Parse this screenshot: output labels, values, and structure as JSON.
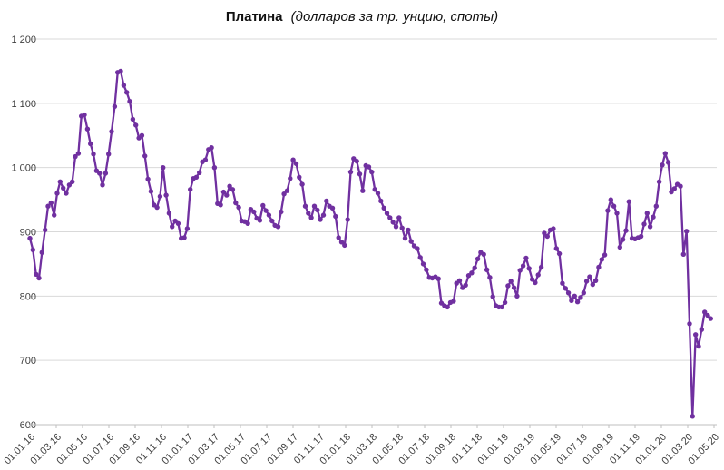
{
  "chart_data": {
    "type": "line",
    "title": "Платина",
    "subtitle": "(долларов за тр. унцию, споты)",
    "legend": "none",
    "grid": "horizontal",
    "ylim": [
      600,
      1200
    ],
    "y_tick_step": 100,
    "y_tick_labels": [
      "600",
      "700",
      "800",
      "900",
      "1 000",
      "1 100",
      "1 200"
    ],
    "x_tick_labels": [
      "01.01.16",
      "01.03.16",
      "01.05.16",
      "01.07.16",
      "01.09.16",
      "01.11.16",
      "01.01.17",
      "01.03.17",
      "01.05.17",
      "01.07.17",
      "01.09.17",
      "01.11.17",
      "01.01.18",
      "01.03.18",
      "01.05.18",
      "01.07.18",
      "01.09.18",
      "01.11.18",
      "01.01.19",
      "01.03.19",
      "01.05.19",
      "01.07.19",
      "01.09.19",
      "01.11.19",
      "01.01.20",
      "01.03.20",
      "01.05.20"
    ],
    "series": [
      {
        "name": "Платина",
        "cadence": "weekly",
        "first_point": "01.01.16",
        "values": [
          890,
          872,
          834,
          828,
          868,
          903,
          940,
          945,
          926,
          960,
          978,
          968,
          960,
          973,
          978,
          1017,
          1022,
          1080,
          1082,
          1060,
          1037,
          1021,
          995,
          991,
          973,
          991,
          1021,
          1056,
          1095,
          1148,
          1150,
          1128,
          1117,
          1103,
          1075,
          1066,
          1046,
          1050,
          1018,
          982,
          963,
          942,
          938,
          955,
          1000,
          957,
          929,
          908,
          917,
          913,
          890,
          891,
          905,
          966,
          983,
          985,
          992,
          1009,
          1012,
          1028,
          1031,
          1000,
          944,
          942,
          962,
          957,
          971,
          966,
          945,
          938,
          917,
          916,
          913,
          935,
          931,
          921,
          918,
          941,
          933,
          926,
          917,
          910,
          908,
          931,
          959,
          964,
          983,
          1012,
          1006,
          985,
          974,
          940,
          929,
          922,
          940,
          934,
          919,
          926,
          948,
          940,
          937,
          924,
          891,
          884,
          879,
          919,
          993,
          1014,
          1010,
          990,
          964,
          1003,
          1001,
          993,
          966,
          960,
          948,
          937,
          929,
          922,
          915,
          908,
          922,
          906,
          890,
          903,
          885,
          878,
          874,
          860,
          850,
          841,
          829,
          828,
          830,
          827,
          789,
          785,
          783,
          790,
          792,
          820,
          824,
          813,
          817,
          832,
          836,
          844,
          858,
          868,
          865,
          841,
          829,
          799,
          785,
          783,
          783,
          790,
          816,
          823,
          813,
          800,
          840,
          847,
          859,
          843,
          826,
          821,
          833,
          845,
          898,
          893,
          903,
          905,
          874,
          866,
          820,
          812,
          805,
          793,
          800,
          791,
          798,
          805,
          823,
          830,
          818,
          824,
          845,
          857,
          864,
          933,
          950,
          940,
          929,
          876,
          888,
          902,
          947,
          890,
          889,
          891,
          893,
          912,
          929,
          908,
          923,
          940,
          978,
          1004,
          1022,
          1008,
          962,
          967,
          974,
          971,
          865,
          901,
          757,
          613,
          740,
          722,
          748,
          775,
          770,
          765
        ]
      }
    ],
    "colors": {
      "line": "#7030A0",
      "marker": "#7030A0",
      "gridline": "#d9d9d9",
      "axis": "#bfbfbf",
      "tick_label": "#404040",
      "background": "#ffffff"
    }
  }
}
